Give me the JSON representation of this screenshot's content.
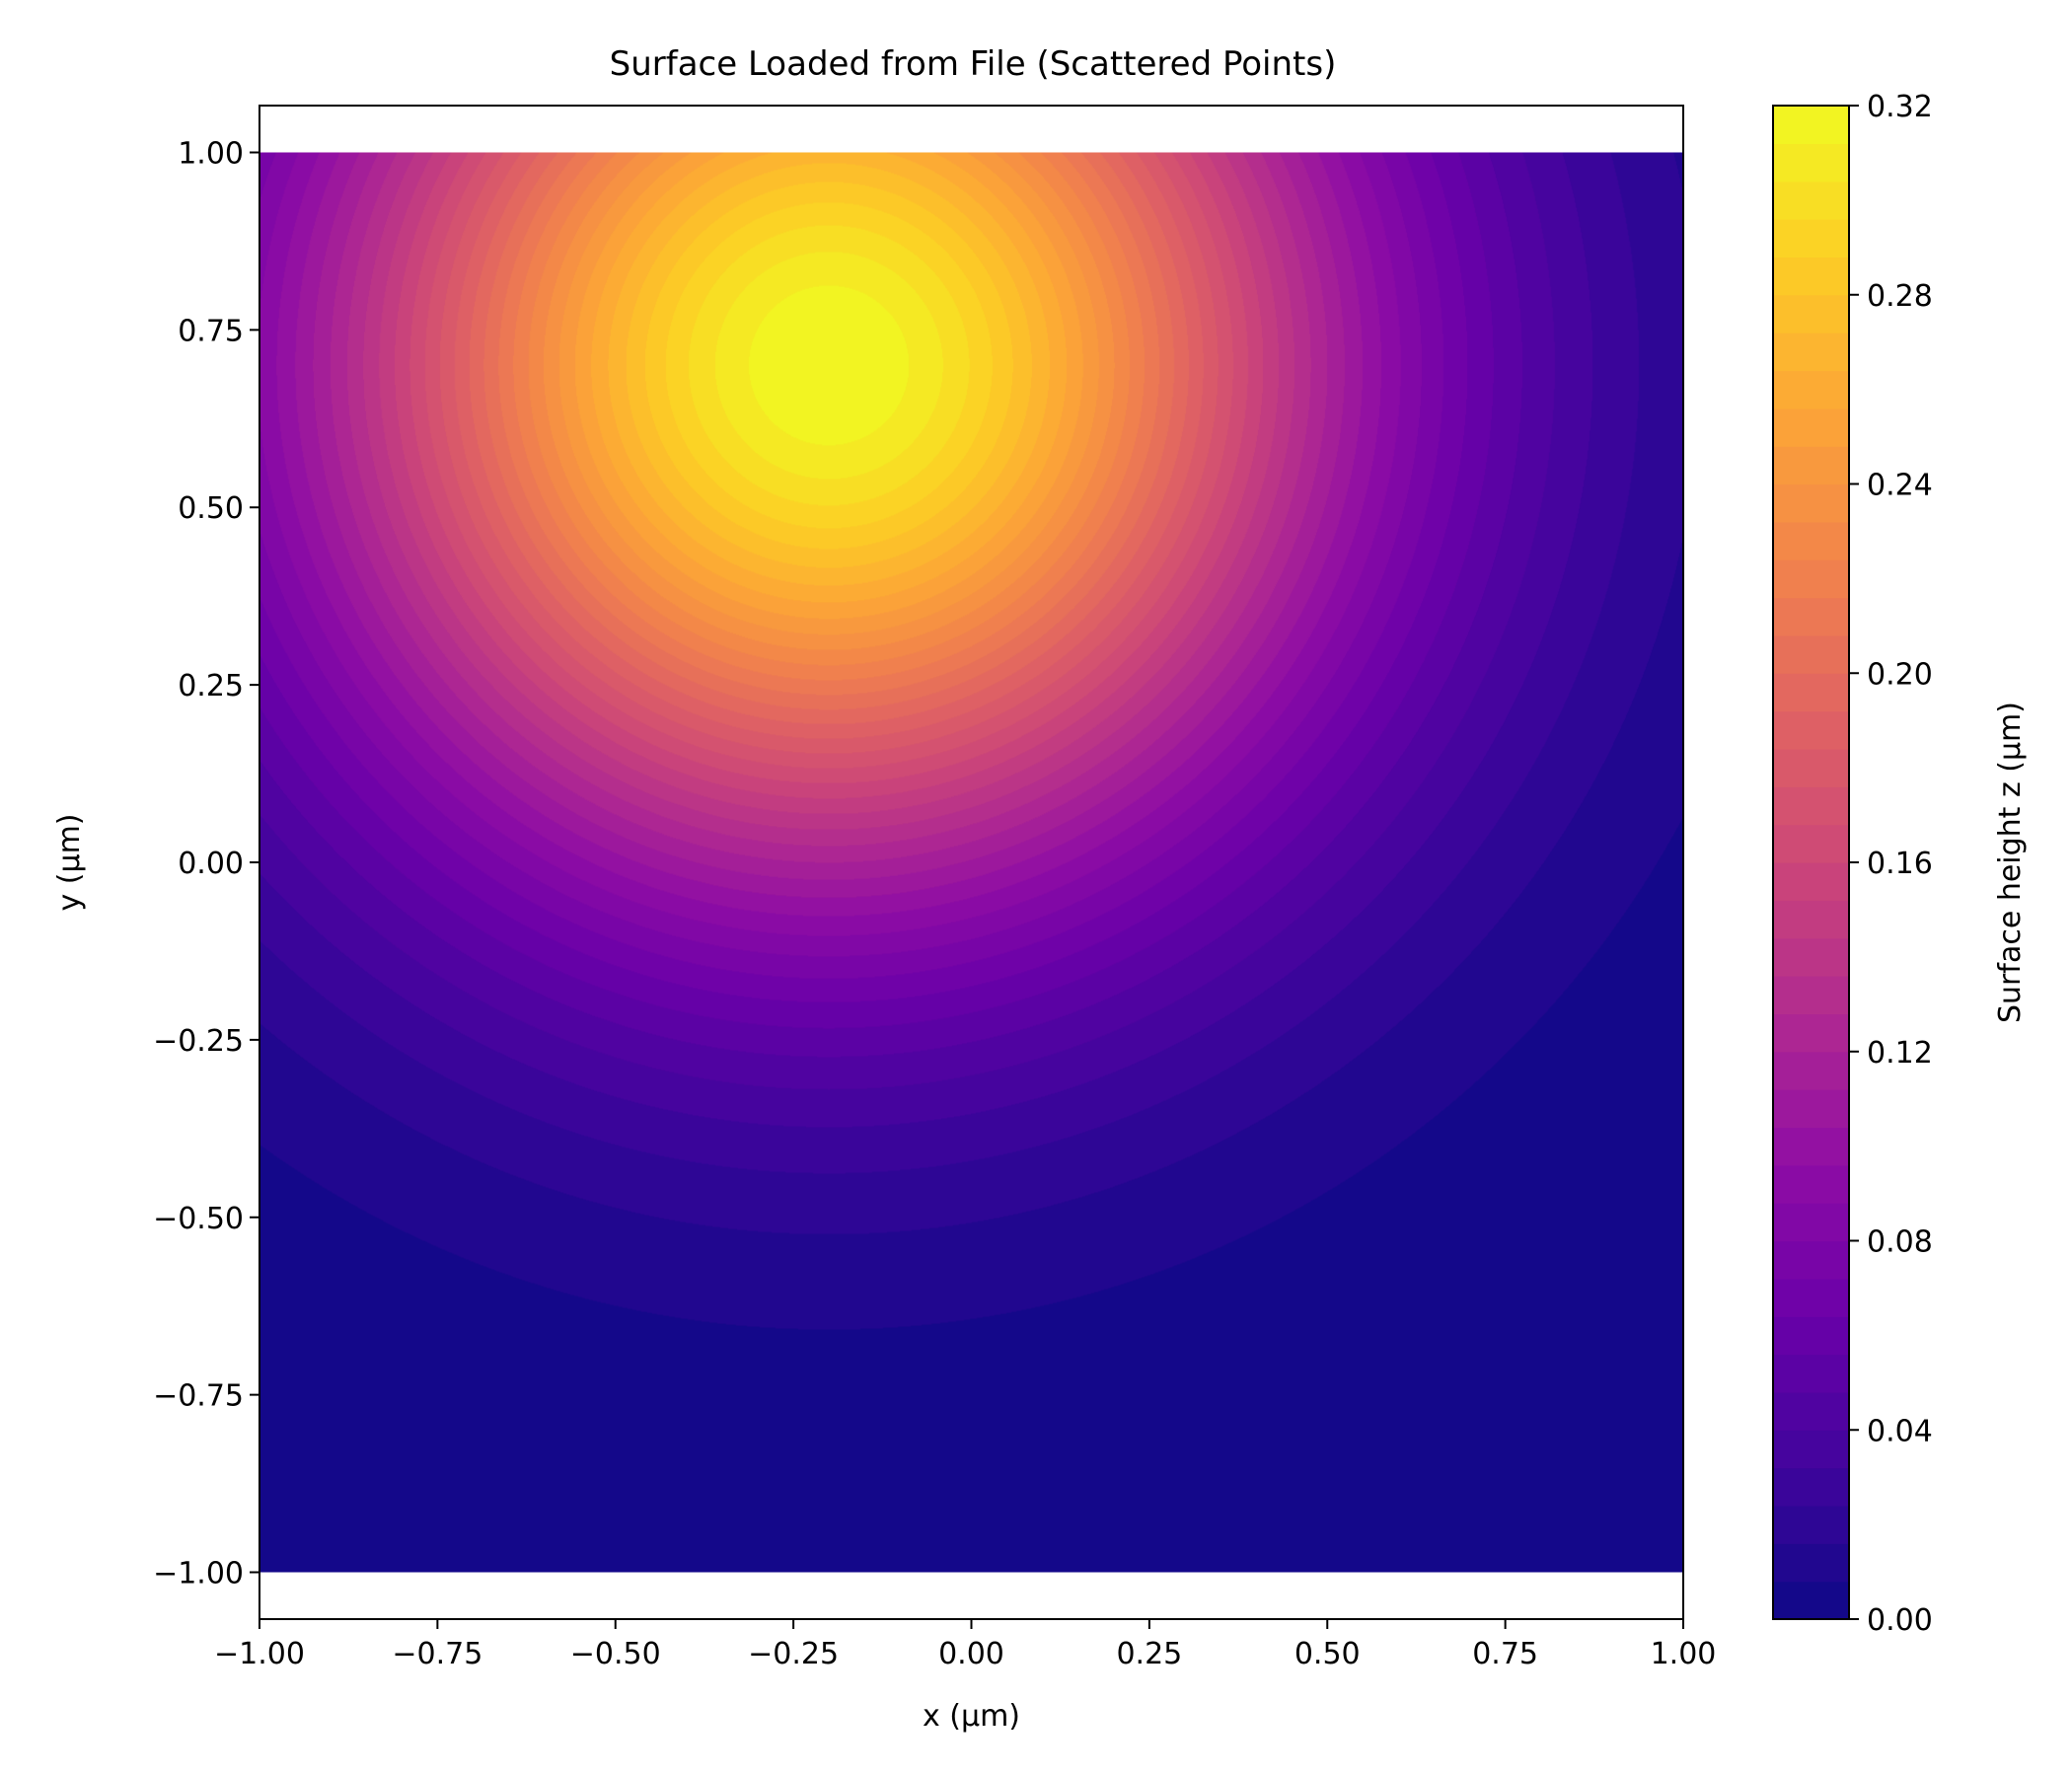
{
  "chart_data": {
    "type": "heatmap",
    "subtype": "filled-contour",
    "title": "Surface Loaded from File (Scattered Points)",
    "xlabel": "x (µm)",
    "ylabel": "y (µm)",
    "colorbar_label": "Surface height z (µm)",
    "colormap": "plasma",
    "xlim": [
      -1.0,
      1.0
    ],
    "ylim": [
      -1.066,
      1.066
    ],
    "data_extent": {
      "x": [
        -1.0,
        1.0
      ],
      "y": [
        -1.0,
        1.0
      ]
    },
    "zlim": [
      0.0,
      0.32
    ],
    "levels": 40,
    "surface": {
      "model": "gaussian",
      "peak_x": -0.2,
      "peak_y": 0.7,
      "amplitude": 0.32,
      "sigma": 0.5
    },
    "x_ticks": [
      {
        "value": -1.0,
        "label": "−1.00"
      },
      {
        "value": -0.75,
        "label": "−0.75"
      },
      {
        "value": -0.5,
        "label": "−0.50"
      },
      {
        "value": -0.25,
        "label": "−0.25"
      },
      {
        "value": 0.0,
        "label": "0.00"
      },
      {
        "value": 0.25,
        "label": "0.25"
      },
      {
        "value": 0.5,
        "label": "0.50"
      },
      {
        "value": 0.75,
        "label": "0.75"
      },
      {
        "value": 1.0,
        "label": "1.00"
      }
    ],
    "y_ticks": [
      {
        "value": 1.0,
        "label": "1.00"
      },
      {
        "value": 0.75,
        "label": "0.75"
      },
      {
        "value": 0.5,
        "label": "0.50"
      },
      {
        "value": 0.25,
        "label": "0.25"
      },
      {
        "value": 0.0,
        "label": "0.00"
      },
      {
        "value": -0.25,
        "label": "−0.25"
      },
      {
        "value": -0.5,
        "label": "−0.50"
      },
      {
        "value": -0.75,
        "label": "−0.75"
      },
      {
        "value": -1.0,
        "label": "−1.00"
      }
    ],
    "colorbar_ticks": [
      {
        "value": 0.0,
        "label": "0.00"
      },
      {
        "value": 0.04,
        "label": "0.04"
      },
      {
        "value": 0.08,
        "label": "0.08"
      },
      {
        "value": 0.12,
        "label": "0.12"
      },
      {
        "value": 0.16,
        "label": "0.16"
      },
      {
        "value": 0.2,
        "label": "0.20"
      },
      {
        "value": 0.24,
        "label": "0.24"
      },
      {
        "value": 0.28,
        "label": "0.28"
      },
      {
        "value": 0.32,
        "label": "0.32"
      }
    ],
    "grid": false,
    "legend": "none"
  }
}
